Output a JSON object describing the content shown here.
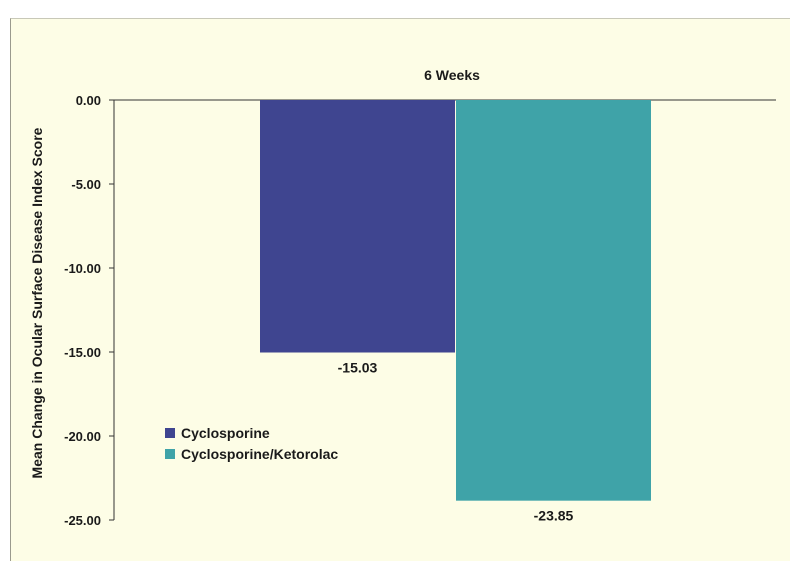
{
  "chart_data": {
    "type": "bar",
    "title": "6 Weeks",
    "xlabel": "",
    "ylabel": "Mean Change in Ocular Surface Disease Index Score",
    "ylim": [
      -25,
      0
    ],
    "yticks": [
      "0.00",
      "-5.00",
      "-10.00",
      "-15.00",
      "-20.00",
      "-25.00"
    ],
    "grid": false,
    "legend_position": "bottom-left",
    "series": [
      {
        "name": "Cyclosporine",
        "value": -15.03,
        "label": "-15.03",
        "color": "#3f4590"
      },
      {
        "name": "Cyclosporine/Ketorolac",
        "value": -23.85,
        "label": "-23.85",
        "color": "#3fa3a8"
      }
    ]
  }
}
